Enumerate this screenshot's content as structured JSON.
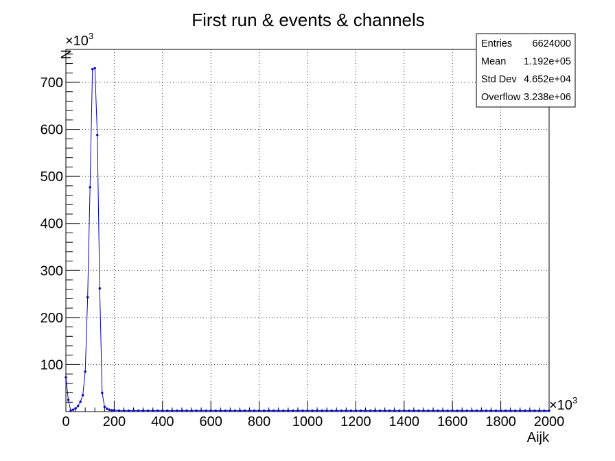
{
  "chart_data": {
    "type": "line",
    "title": "First run & events & channels",
    "xlabel": "Aijk",
    "ylabel": "N",
    "x_multiplier": "×10",
    "x_multiplier_exp": "3",
    "y_multiplier": "×10",
    "y_multiplier_exp": "3",
    "xlim": [
      0,
      2000
    ],
    "ylim": [
      0,
      770
    ],
    "x_ticks": [
      "0",
      "200",
      "400",
      "600",
      "800",
      "1000",
      "1200",
      "1400",
      "1600",
      "1800",
      "2000"
    ],
    "y_ticks": [
      "100",
      "200",
      "300",
      "400",
      "500",
      "600",
      "700"
    ],
    "grid": true,
    "line_color": "#0000cc",
    "marker": "dot",
    "stats": {
      "rows": [
        {
          "label": "Entries",
          "value": "6624000"
        },
        {
          "label": "Mean",
          "value": "1.192e+05"
        },
        {
          "label": "Std Dev",
          "value": "4.652e+04"
        },
        {
          "label": "Overflow",
          "value": "3.238e+06"
        }
      ],
      "position": "top-right"
    },
    "series": [
      {
        "x": [
          0,
          10,
          20,
          30,
          40,
          50,
          60,
          70,
          80,
          90,
          100,
          110,
          120,
          130,
          140,
          150,
          160,
          170,
          180,
          190,
          200,
          220,
          240,
          260,
          280,
          300,
          320,
          340,
          360,
          380,
          400,
          420,
          440,
          460,
          480,
          500,
          520,
          540,
          560,
          580,
          600,
          620,
          640,
          660,
          680,
          700,
          720,
          740,
          760,
          780,
          800,
          820,
          840,
          860,
          880,
          900,
          920,
          940,
          960,
          980,
          1000,
          1020,
          1040,
          1060,
          1080,
          1100,
          1120,
          1140,
          1160,
          1180,
          1200,
          1220,
          1240,
          1260,
          1280,
          1300,
          1320,
          1340,
          1360,
          1380,
          1400,
          1420,
          1440,
          1460,
          1480,
          1500,
          1520,
          1540,
          1560,
          1580,
          1600,
          1620,
          1640,
          1660,
          1680,
          1700,
          1720,
          1740,
          1760,
          1780,
          1800,
          1820,
          1840,
          1860,
          1880,
          1900,
          1920,
          1940,
          1960,
          1980,
          2000
        ],
        "values": [
          73,
          25,
          2,
          4,
          7,
          12,
          21,
          35,
          85,
          243,
          477,
          728,
          730,
          588,
          262,
          40,
          10,
          6,
          4,
          3,
          3,
          2,
          2,
          2,
          2,
          2,
          2,
          2,
          2,
          2,
          2,
          2,
          2,
          2,
          2,
          2,
          2,
          2,
          2,
          2,
          2,
          2,
          2,
          2,
          2,
          2,
          2,
          2,
          2,
          2,
          2,
          2,
          2,
          2,
          2,
          2,
          2,
          2,
          2,
          2,
          2,
          2,
          2,
          2,
          2,
          2,
          2,
          2,
          2,
          2,
          2,
          2,
          2,
          2,
          2,
          2,
          2,
          2,
          2,
          2,
          2,
          2,
          2,
          2,
          2,
          2,
          2,
          2,
          2,
          2,
          2,
          2,
          2,
          2,
          2,
          2,
          2,
          2,
          2,
          2,
          2,
          2,
          2,
          2,
          2,
          2,
          2,
          2,
          2,
          2,
          2
        ]
      }
    ]
  }
}
